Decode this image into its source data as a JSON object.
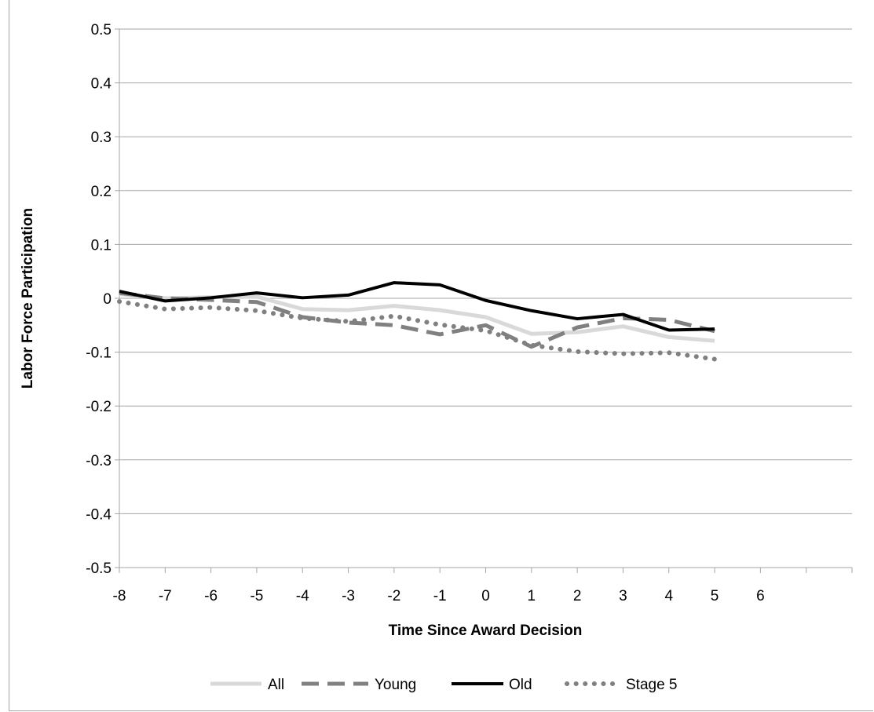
{
  "chart_data": {
    "type": "line",
    "title": "",
    "xlabel": "Time Since Award Decision",
    "ylabel": "Labor Force Participation",
    "x": [
      -8,
      -7,
      -6,
      -5,
      -4,
      -3,
      -2,
      -1,
      0,
      1,
      2,
      3,
      4,
      5
    ],
    "x_ticks": [
      "-8",
      "-7",
      "-6",
      "-5",
      "-4",
      "-3",
      "-2",
      "-1",
      "0",
      "1",
      "2",
      "3",
      "4",
      "5",
      "6"
    ],
    "y_ticks": [
      "0.5",
      "0.4",
      "0.3",
      "0.2",
      "0.1",
      "0",
      "-0.1",
      "-0.2",
      "-0.3",
      "-0.4",
      "-0.5"
    ],
    "xlim": [
      -8,
      8
    ],
    "ylim": [
      -0.5,
      0.5
    ],
    "grid": true,
    "legend_position": "bottom",
    "series": [
      {
        "name": "All",
        "color": "#d9d9d9",
        "style": "solid",
        "values": [
          0.008,
          0.0,
          0.002,
          0.003,
          -0.02,
          -0.022,
          -0.014,
          -0.022,
          -0.035,
          -0.066,
          -0.063,
          -0.052,
          -0.072,
          -0.079
        ]
      },
      {
        "name": "Young",
        "color": "#808080",
        "style": "dashed",
        "values": [
          0.01,
          0.0,
          -0.003,
          -0.007,
          -0.035,
          -0.045,
          -0.05,
          -0.067,
          -0.05,
          -0.09,
          -0.054,
          -0.037,
          -0.04,
          -0.061
        ]
      },
      {
        "name": "Old",
        "color": "#000000",
        "style": "solid",
        "values": [
          0.013,
          -0.005,
          0.001,
          0.01,
          0.001,
          0.006,
          0.029,
          0.025,
          -0.004,
          -0.023,
          -0.038,
          -0.03,
          -0.059,
          -0.057
        ]
      },
      {
        "name": "Stage 5",
        "color": "#808080",
        "style": "dotted",
        "values": [
          -0.006,
          -0.02,
          -0.017,
          -0.023,
          -0.037,
          -0.043,
          -0.033,
          -0.049,
          -0.06,
          -0.087,
          -0.099,
          -0.103,
          -0.101,
          -0.113
        ]
      }
    ]
  }
}
